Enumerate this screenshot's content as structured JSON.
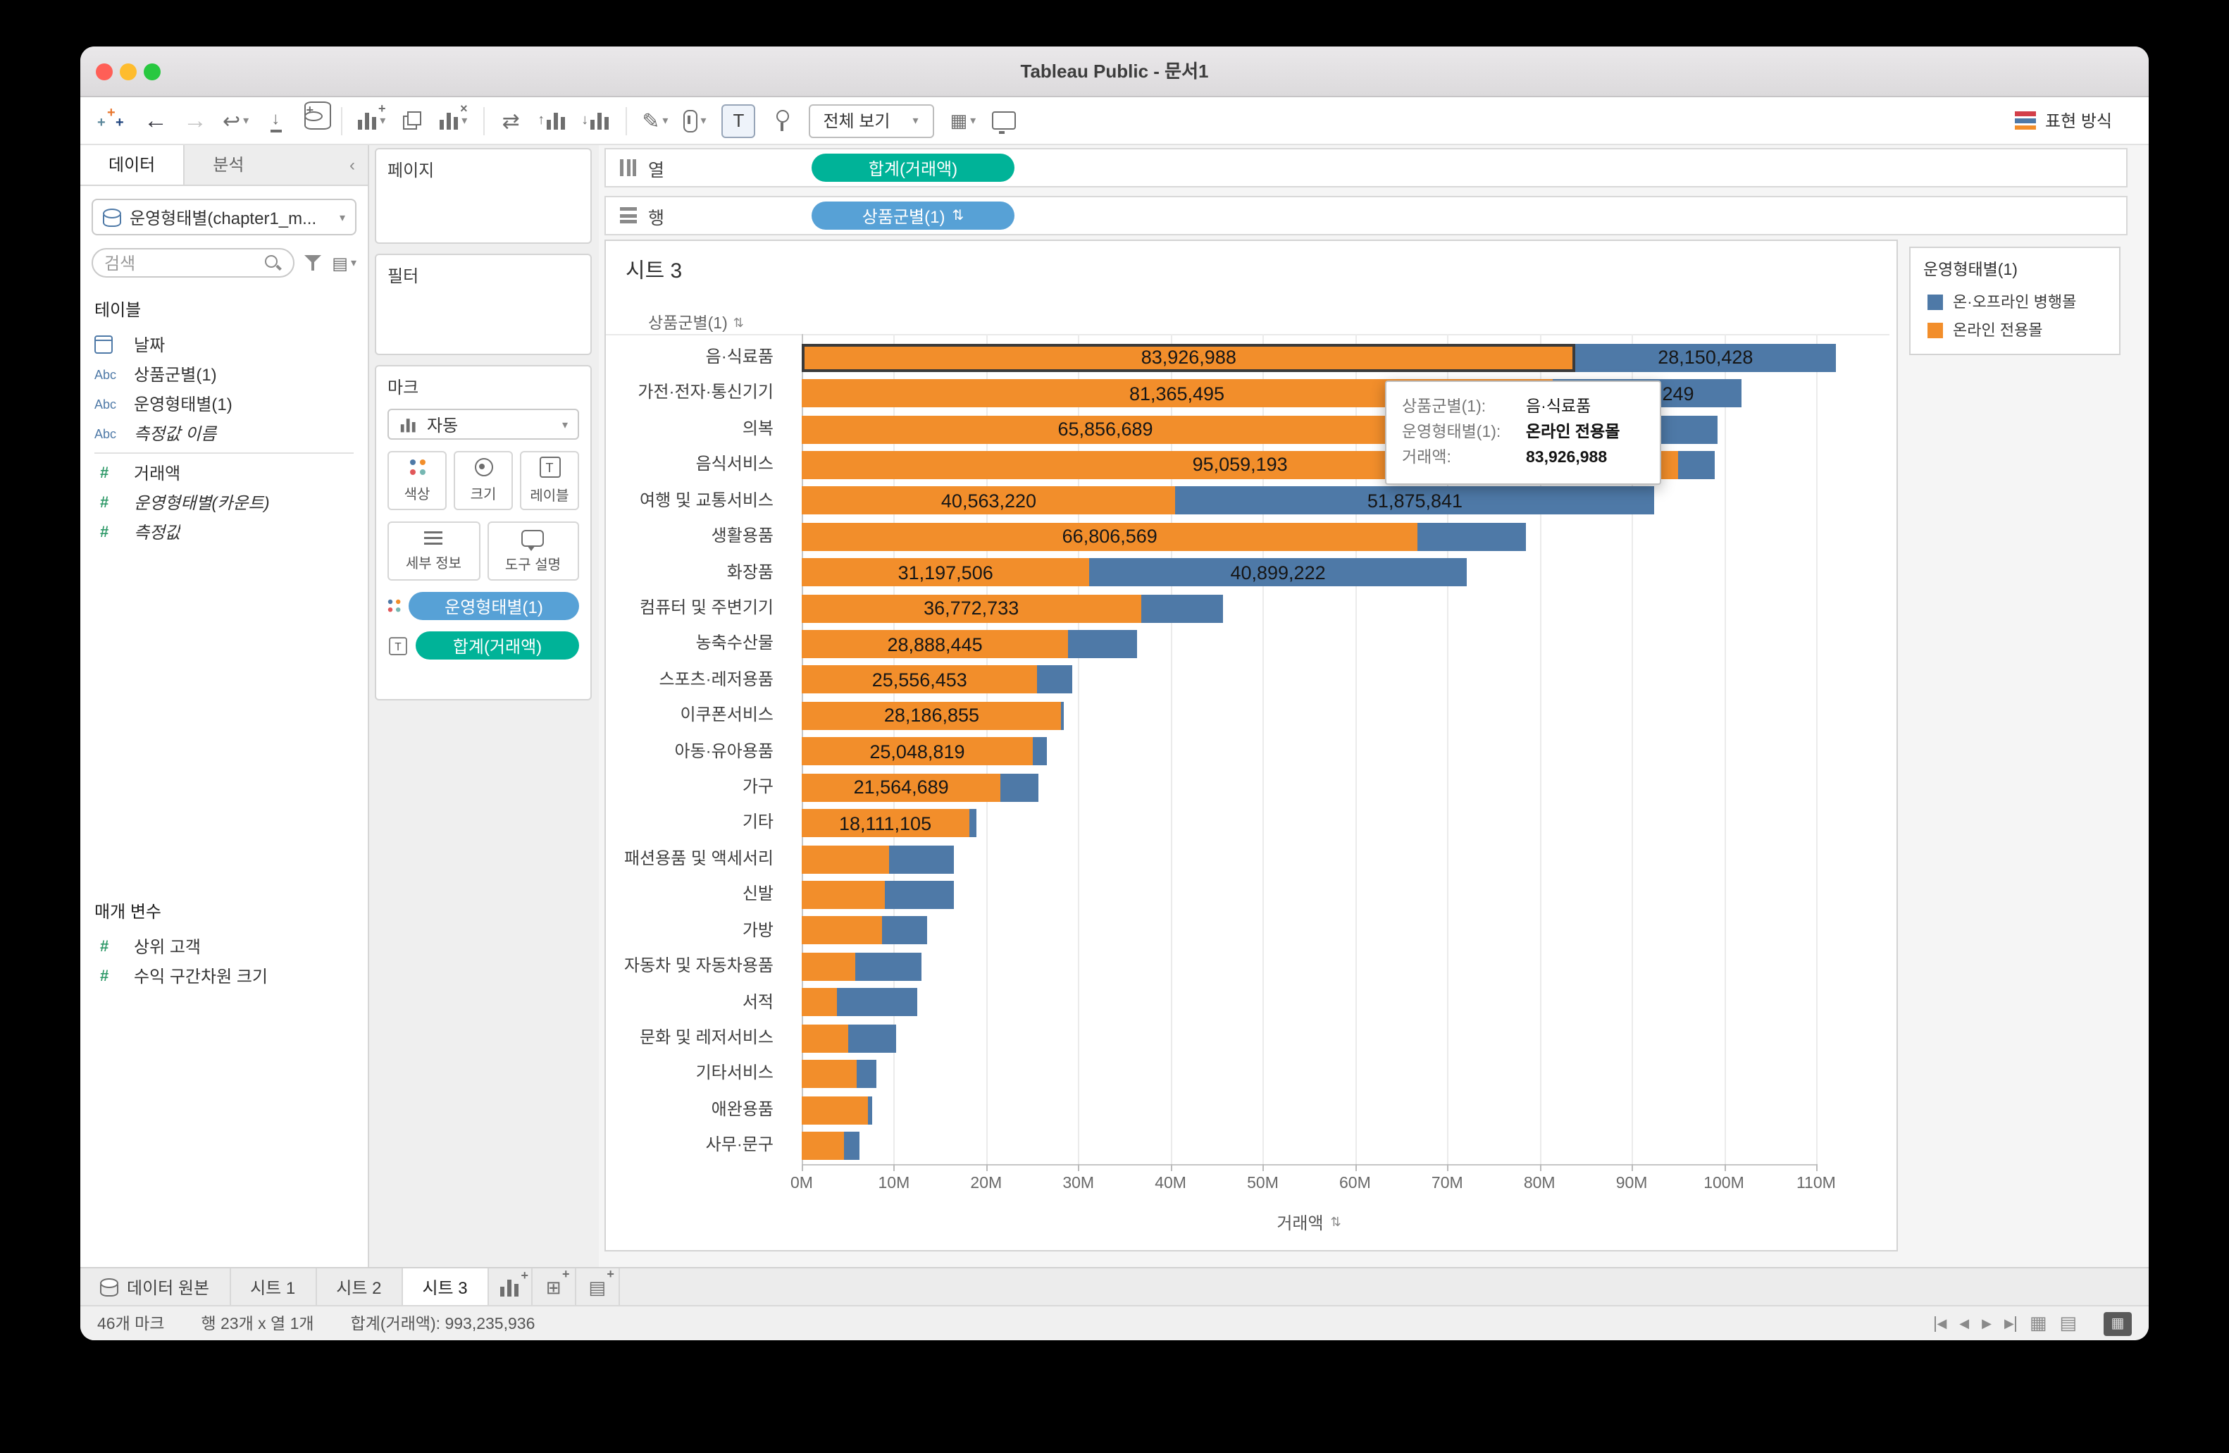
{
  "window": {
    "title": "Tableau Public - 문서1"
  },
  "toolbar": {
    "fit_selector": "전체 보기",
    "show_me_label": "표현 방식"
  },
  "sidebar": {
    "tabs": [
      {
        "label": "데이터"
      },
      {
        "label": "분석"
      }
    ],
    "datasource": "운영형태별(chapter1_m...",
    "search_placeholder": "검색",
    "tables_header": "테이블",
    "fields": [
      {
        "icon": "calendar",
        "label": "날짜"
      },
      {
        "icon": "Abc",
        "label": "상품군별(1)"
      },
      {
        "icon": "Abc",
        "label": "운영형태별(1)"
      },
      {
        "icon": "Abc",
        "label": "측정값 이름",
        "italic": true
      },
      {
        "icon": "#",
        "label": "거래액",
        "sep_before": true
      },
      {
        "icon": "#",
        "label": "운영형태별(카운트)",
        "italic": true
      },
      {
        "icon": "#",
        "label": "측정값",
        "italic": true
      }
    ],
    "parameters_header": "매개 변수",
    "parameters": [
      {
        "icon": "#",
        "label": "상위 고객"
      },
      {
        "icon": "#",
        "label": "수익 구간차원 크기"
      }
    ]
  },
  "shelves": {
    "pages_label": "페이지",
    "filters_label": "필터",
    "marks_label": "마크",
    "mark_type": "자동",
    "buttons": {
      "color": "색상",
      "size": "크기",
      "label": "레이블",
      "detail": "세부 정보",
      "tooltip": "도구 설명"
    },
    "mark_pills": [
      {
        "label": "운영형태별(1)"
      },
      {
        "label": "합계(거래액)"
      }
    ],
    "columns_label": "열",
    "rows_label": "행",
    "columns_pill": "합계(거래액)",
    "rows_pill": "상품군별(1)"
  },
  "sheet": {
    "title": "시트 3",
    "row_header": "상품군별(1)"
  },
  "legend": {
    "title": "운영형태별(1)",
    "items": [
      {
        "color": "#4e79a7",
        "label": "온·오프라인 병행몰"
      },
      {
        "color": "#f28e2b",
        "label": "온라인 전용몰"
      }
    ]
  },
  "tooltip": {
    "rows": [
      {
        "label": "상품군별(1):",
        "value": "음·식료품",
        "bold": false
      },
      {
        "label": "운영형태별(1):",
        "value": "온라인 전용몰",
        "bold": true
      },
      {
        "label": "거래액:",
        "value": "83,926,988",
        "bold": true
      }
    ]
  },
  "tabs_bar": {
    "datasource_tab": "데이터 원본",
    "sheets": [
      "시트 1",
      "시트 2",
      "시트 3"
    ],
    "active": "시트 3"
  },
  "status_bar": {
    "marks": "46개 마크",
    "dims": "행 23개 x 열 1개",
    "total": "합계(거래액): 993,235,936"
  },
  "chart_data": {
    "type": "bar",
    "orientation": "horizontal",
    "stacked": true,
    "title": "시트 3",
    "row_field": "상품군별(1)",
    "xlabel": "거래액",
    "x_ticks": [
      "0M",
      "10M",
      "20M",
      "30M",
      "40M",
      "50M",
      "60M",
      "70M",
      "80M",
      "90M",
      "100M",
      "110M"
    ],
    "xlim_millions": [
      0,
      119
    ],
    "legend_position": "right",
    "grid": true,
    "series": [
      {
        "name": "온라인 전용몰",
        "color": "#f28e2b"
      },
      {
        "name": "온·오프라인 병행몰",
        "color": "#4e79a7"
      }
    ],
    "rows": [
      {
        "category": "음·식료품",
        "online": 83926988,
        "online_label": "83,926,988",
        "hybrid": 28150428,
        "hybrid_label": "28,150,428",
        "selected": true
      },
      {
        "category": "가전·전자·통신기기",
        "online": 81365495,
        "online_label": "81,365,495",
        "hybrid": 20611249,
        "hybrid_label": "20,611,249"
      },
      {
        "category": "의복",
        "online": 65856689,
        "online_label": "65,856,689",
        "hybrid": 33500000
      },
      {
        "category": "음식서비스",
        "online": 95059193,
        "online_label": "95,059,193",
        "hybrid": 3900000
      },
      {
        "category": "여행 및 교통서비스",
        "online": 40563220,
        "online_label": "40,563,220",
        "hybrid": 51875841,
        "hybrid_label": "51,875,841"
      },
      {
        "category": "생활용품",
        "online": 66806569,
        "online_label": "66,806,569",
        "hybrid": 11800000
      },
      {
        "category": "화장품",
        "online": 31197506,
        "online_label": "31,197,506",
        "hybrid": 40899222,
        "hybrid_label": "40,899,222"
      },
      {
        "category": "컴퓨터 및 주변기기",
        "online": 36772733,
        "online_label": "36,772,733",
        "hybrid": 8900000
      },
      {
        "category": "농축수산물",
        "online": 28888445,
        "online_label": "28,888,445",
        "hybrid": 7500000
      },
      {
        "category": "스포츠·레저용품",
        "online": 25556453,
        "online_label": "25,556,453",
        "hybrid": 3800000
      },
      {
        "category": "이쿠폰서비스",
        "online": 28186855,
        "online_label": "28,186,855",
        "hybrid": 300000
      },
      {
        "category": "아동·유아용품",
        "online": 25048819,
        "online_label": "25,048,819",
        "hybrid": 1500000
      },
      {
        "category": "가구",
        "online": 21564689,
        "online_label": "21,564,689",
        "hybrid": 4100000
      },
      {
        "category": "기타",
        "online": 18111105,
        "online_label": "18,111,105",
        "hybrid": 800000
      },
      {
        "category": "패션용품 및 액세서리",
        "online": 9500000,
        "hybrid": 7000000
      },
      {
        "category": "신발",
        "online": 9000000,
        "hybrid": 7500000
      },
      {
        "category": "가방",
        "online": 8700000,
        "hybrid": 4900000
      },
      {
        "category": "자동차 및 자동차용품",
        "online": 5800000,
        "hybrid": 7200000
      },
      {
        "category": "서적",
        "online": 3800000,
        "hybrid": 8700000
      },
      {
        "category": "문화 및 레저서비스",
        "online": 5000000,
        "hybrid": 5200000
      },
      {
        "category": "기타서비스",
        "online": 6000000,
        "hybrid": 2100000
      },
      {
        "category": "애완용품",
        "online": 7200000,
        "hybrid": 500000
      },
      {
        "category": "사무·문구",
        "online": 4600000,
        "hybrid": 1700000
      }
    ]
  }
}
